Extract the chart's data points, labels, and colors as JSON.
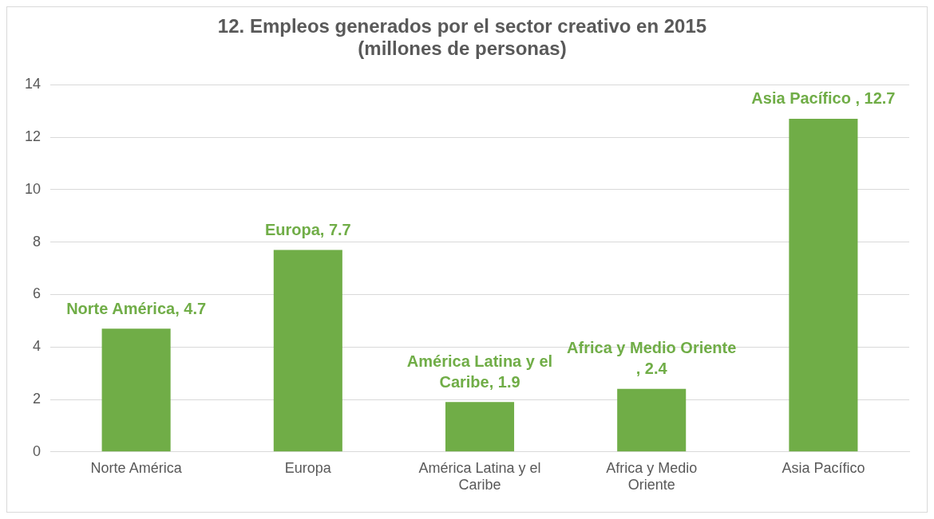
{
  "chart_data": {
    "type": "bar",
    "title": "12. Empleos generados por el sector creativo en 2015",
    "subtitle": "(millones de personas)",
    "categories": [
      "Norte América",
      "Europa",
      "América Latina y el Caribe",
      "Africa y Medio Oriente",
      "Asia Pacífico"
    ],
    "values": [
      4.7,
      7.7,
      1.9,
      2.4,
      12.7
    ],
    "value_labels": [
      "Norte América, 4.7",
      "Europa, 7.7",
      "América Latina y el Caribe, 1.9",
      "Africa y Medio Oriente , 2.4",
      "Asia Pacífico , 12.7"
    ],
    "color": "#70ad47",
    "ylim": [
      0,
      14
    ],
    "yticks": [
      0,
      2,
      4,
      6,
      8,
      10,
      12,
      14
    ],
    "grid": "y",
    "legend": false
  }
}
